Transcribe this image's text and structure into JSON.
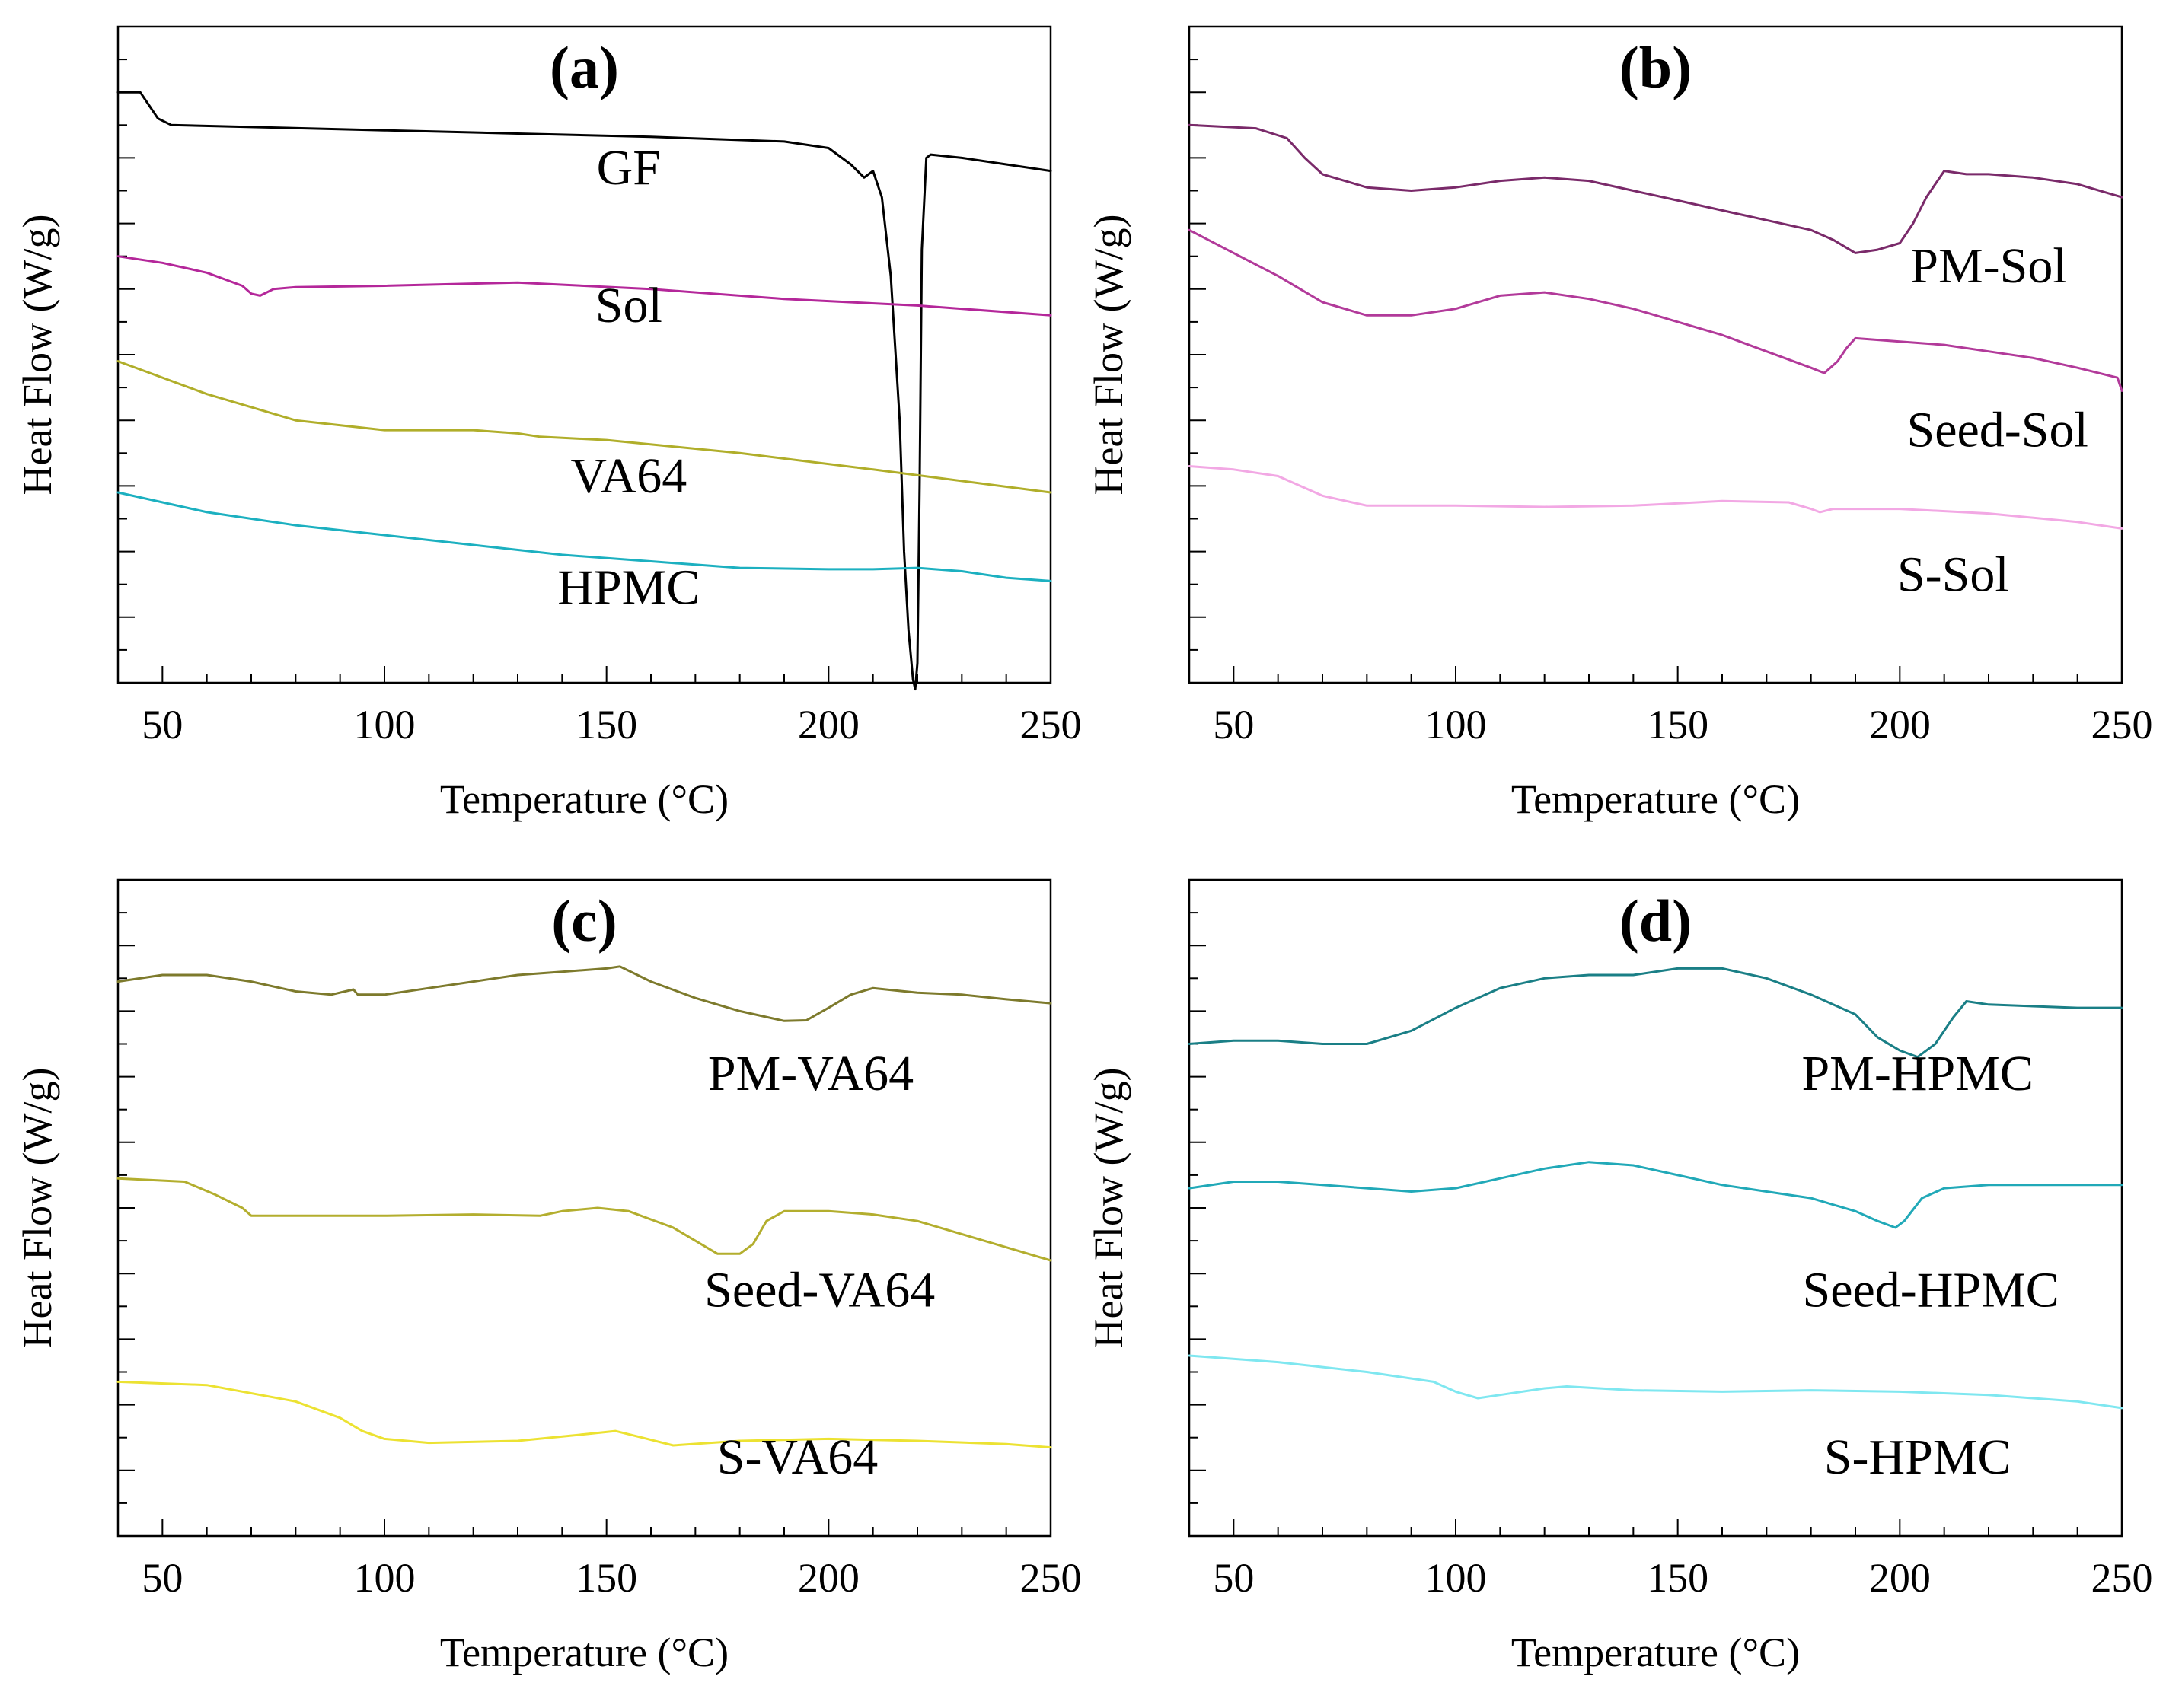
{
  "figure": {
    "description_text": "",
    "xlabel": "Temperature (°C)",
    "ylabel": "Heat Flow (W/g)"
  },
  "colors": {
    "GF": "#000000",
    "Sol": "#b4279a",
    "VA64": "#b0ae2a",
    "HPMC": "#1cb0c0",
    "PM-Sol": "#7a2a6a",
    "Seed-Sol": "#b23a9a",
    "S-Sol": "#f2a8e4",
    "PM-VA64": "#7d7a2c",
    "Seed-VA64": "#b3ae2e",
    "S-VA64": "#ece232",
    "PM-HPMC": "#1a7f86",
    "Seed-HPMC": "#21a9b8",
    "S-HPMC": "#7fe7f0"
  },
  "chart_data": [
    {
      "type": "line",
      "title": "(a)",
      "xlabel": "Temperature (°C)",
      "ylabel": "Heat Flow (W/g)",
      "xlim": [
        40,
        250
      ],
      "ylim": [
        0,
        100
      ],
      "xticks": [
        50,
        100,
        150,
        200,
        250
      ],
      "yticks_labeled": false,
      "series": [
        {
          "name": "GF",
          "label": "GF",
          "label_at": [
            155,
            76
          ],
          "x": [
            40,
            45,
            47,
            49,
            52,
            70,
            100,
            130,
            160,
            190,
            200,
            205,
            208,
            210,
            212,
            214,
            216,
            217,
            218,
            219,
            219.5,
            220,
            220.5,
            221,
            222,
            223,
            230,
            240,
            250
          ],
          "y": [
            90,
            90,
            88,
            86,
            85,
            84.7,
            84.2,
            83.7,
            83.2,
            82.5,
            81.5,
            79,
            77,
            78,
            74,
            62,
            40,
            20,
            8,
            0.5,
            -1,
            3,
            30,
            66,
            80,
            80.5,
            80,
            79,
            78
          ]
        },
        {
          "name": "Sol",
          "label": "Sol",
          "label_at": [
            155,
            55
          ],
          "x": [
            40,
            50,
            60,
            68,
            70,
            72,
            75,
            80,
            100,
            130,
            160,
            190,
            220,
            250
          ],
          "y": [
            65,
            64,
            62.5,
            60.5,
            59.3,
            59,
            60,
            60.3,
            60.5,
            61,
            60,
            58.5,
            57.5,
            56
          ]
        },
        {
          "name": "VA64",
          "label": "VA64",
          "label_at": [
            155,
            29
          ],
          "x": [
            40,
            60,
            80,
            100,
            120,
            130,
            135,
            150,
            180,
            210,
            250
          ],
          "y": [
            49,
            44,
            40,
            38.5,
            38.5,
            38,
            37.5,
            37,
            35,
            32.5,
            29
          ]
        },
        {
          "name": "HPMC",
          "label": "HPMC",
          "label_at": [
            155,
            12
          ],
          "x": [
            40,
            60,
            80,
            100,
            120,
            140,
            160,
            180,
            200,
            210,
            220,
            230,
            240,
            250
          ],
          "y": [
            29,
            26,
            24,
            22.5,
            21,
            19.5,
            18.5,
            17.5,
            17.3,
            17.3,
            17.5,
            17,
            16,
            15.5
          ]
        }
      ]
    },
    {
      "type": "line",
      "title": "(b)",
      "xlabel": "Temperature (°C)",
      "ylabel": "Heat Flow (W/g)",
      "xlim": [
        40,
        250
      ],
      "ylim": [
        0,
        100
      ],
      "xticks": [
        50,
        100,
        150,
        200,
        250
      ],
      "yticks_labeled": false,
      "series": [
        {
          "name": "PM-Sol",
          "label": "PM-Sol",
          "label_at": [
            220,
            61
          ],
          "x": [
            40,
            55,
            62,
            66,
            70,
            80,
            90,
            100,
            110,
            120,
            130,
            140,
            150,
            160,
            170,
            180,
            185,
            190,
            195,
            200,
            203,
            206,
            210,
            215,
            220,
            230,
            240,
            250
          ],
          "y": [
            85,
            84.5,
            83,
            80,
            77.5,
            75.5,
            75,
            75.5,
            76.5,
            77,
            76.5,
            75,
            73.5,
            72,
            70.5,
            69,
            67.5,
            65.5,
            66,
            67,
            70,
            74,
            78,
            77.5,
            77.5,
            77,
            76,
            74
          ]
        },
        {
          "name": "Seed-Sol",
          "label": "Seed-Sol",
          "label_at": [
            222,
            36
          ],
          "x": [
            40,
            50,
            60,
            70,
            80,
            90,
            100,
            110,
            120,
            130,
            140,
            150,
            160,
            170,
            180,
            183,
            186,
            188,
            190,
            200,
            210,
            220,
            230,
            240,
            249,
            250
          ],
          "y": [
            69,
            65.5,
            62,
            58,
            56,
            56,
            57,
            59,
            59.5,
            58.5,
            57,
            55,
            53,
            50.5,
            48,
            47.2,
            49,
            51,
            52.5,
            52,
            51.5,
            50.5,
            49.5,
            48,
            46.5,
            44.5
          ]
        },
        {
          "name": "S-Sol",
          "label": "S-Sol",
          "label_at": [
            212,
            14
          ],
          "x": [
            40,
            50,
            60,
            70,
            80,
            100,
            120,
            140,
            160,
            175,
            180,
            182,
            185,
            200,
            220,
            240,
            250
          ],
          "y": [
            33,
            32.5,
            31.5,
            28.5,
            27,
            27,
            26.8,
            27,
            27.7,
            27.5,
            26.5,
            26,
            26.5,
            26.5,
            25.8,
            24.5,
            23.5
          ]
        }
      ]
    },
    {
      "type": "line",
      "title": "(c)",
      "xlabel": "Temperature (°C)",
      "ylabel": "Heat Flow (W/g)",
      "xlim": [
        40,
        250
      ],
      "ylim": [
        0,
        100
      ],
      "xticks": [
        50,
        100,
        150,
        200,
        250
      ],
      "yticks_labeled": false,
      "series": [
        {
          "name": "PM-VA64",
          "label": "PM-VA64",
          "label_at": [
            196,
            68
          ],
          "x": [
            40,
            50,
            60,
            70,
            80,
            88,
            93,
            94,
            95,
            100,
            110,
            120,
            130,
            140,
            150,
            153,
            160,
            170,
            180,
            190,
            195,
            200,
            205,
            210,
            220,
            230,
            240,
            250
          ],
          "y": [
            84.5,
            85.5,
            85.5,
            84.5,
            83,
            82.5,
            83.3,
            82.5,
            82.5,
            82.5,
            83.5,
            84.5,
            85.5,
            86,
            86.5,
            86.8,
            84.5,
            82,
            80,
            78.5,
            78.6,
            80.5,
            82.5,
            83.5,
            82.8,
            82.5,
            81.8,
            81.2
          ]
        },
        {
          "name": "Seed-VA64",
          "label": "Seed-VA64",
          "label_at": [
            198,
            35
          ],
          "x": [
            40,
            55,
            62,
            68,
            70,
            80,
            100,
            120,
            135,
            140,
            148,
            155,
            165,
            175,
            180,
            183,
            186,
            190,
            200,
            210,
            220,
            240,
            250
          ],
          "y": [
            54.5,
            54,
            52,
            50,
            48.8,
            48.8,
            48.8,
            49,
            48.8,
            49.5,
            50,
            49.5,
            47,
            43,
            43,
            44.5,
            48,
            49.5,
            49.5,
            49,
            48,
            44,
            42
          ]
        },
        {
          "name": "S-VA64",
          "label": "S-VA64",
          "label_at": [
            193,
            9.5
          ],
          "x": [
            40,
            60,
            80,
            90,
            95,
            100,
            110,
            130,
            145,
            152,
            158,
            165,
            180,
            200,
            220,
            240,
            250
          ],
          "y": [
            23.5,
            23,
            20.5,
            18,
            16,
            14.8,
            14.2,
            14.5,
            15.5,
            16,
            15,
            13.8,
            14.5,
            14.8,
            14.5,
            14,
            13.5
          ]
        }
      ]
    },
    {
      "type": "line",
      "title": "(d)",
      "xlabel": "Temperature (°C)",
      "ylabel": "Heat Flow (W/g)",
      "xlim": [
        40,
        250
      ],
      "ylim": [
        0,
        100
      ],
      "xticks": [
        50,
        100,
        150,
        200,
        250
      ],
      "yticks_labeled": false,
      "series": [
        {
          "name": "PM-HPMC",
          "label": "PM-HPMC",
          "label_at": [
            204,
            68
          ],
          "x": [
            40,
            50,
            60,
            70,
            80,
            90,
            100,
            110,
            120,
            130,
            140,
            150,
            160,
            170,
            180,
            190,
            195,
            200,
            204,
            208,
            212,
            215,
            220,
            240,
            250
          ],
          "y": [
            75,
            75.5,
            75.5,
            75,
            75,
            77,
            80.5,
            83.5,
            85,
            85.5,
            85.5,
            86.5,
            86.5,
            85,
            82.5,
            79.5,
            76,
            74,
            73,
            75,
            79,
            81.5,
            81,
            80.5,
            80.5
          ]
        },
        {
          "name": "Seed-HPMC",
          "label": "Seed-HPMC",
          "label_at": [
            207,
            35
          ],
          "x": [
            40,
            50,
            60,
            70,
            80,
            90,
            100,
            110,
            120,
            130,
            140,
            150,
            160,
            170,
            180,
            190,
            195,
            199,
            201,
            205,
            210,
            220,
            240,
            250
          ],
          "y": [
            53,
            54,
            54,
            53.5,
            53,
            52.5,
            53,
            54.5,
            56,
            57,
            56.5,
            55,
            53.5,
            52.5,
            51.5,
            49.5,
            48,
            47,
            48,
            51.5,
            53,
            53.5,
            53.5,
            53.5
          ]
        },
        {
          "name": "S-HPMC",
          "label": "S-HPMC",
          "label_at": [
            204,
            9.5
          ],
          "x": [
            40,
            60,
            80,
            95,
            100,
            105,
            110,
            120,
            125,
            140,
            160,
            180,
            200,
            220,
            240,
            250
          ],
          "y": [
            27.5,
            26.5,
            25,
            23.5,
            22,
            21,
            21.5,
            22.5,
            22.8,
            22.2,
            22,
            22.2,
            22,
            21.5,
            20.5,
            19.5
          ]
        }
      ]
    }
  ]
}
